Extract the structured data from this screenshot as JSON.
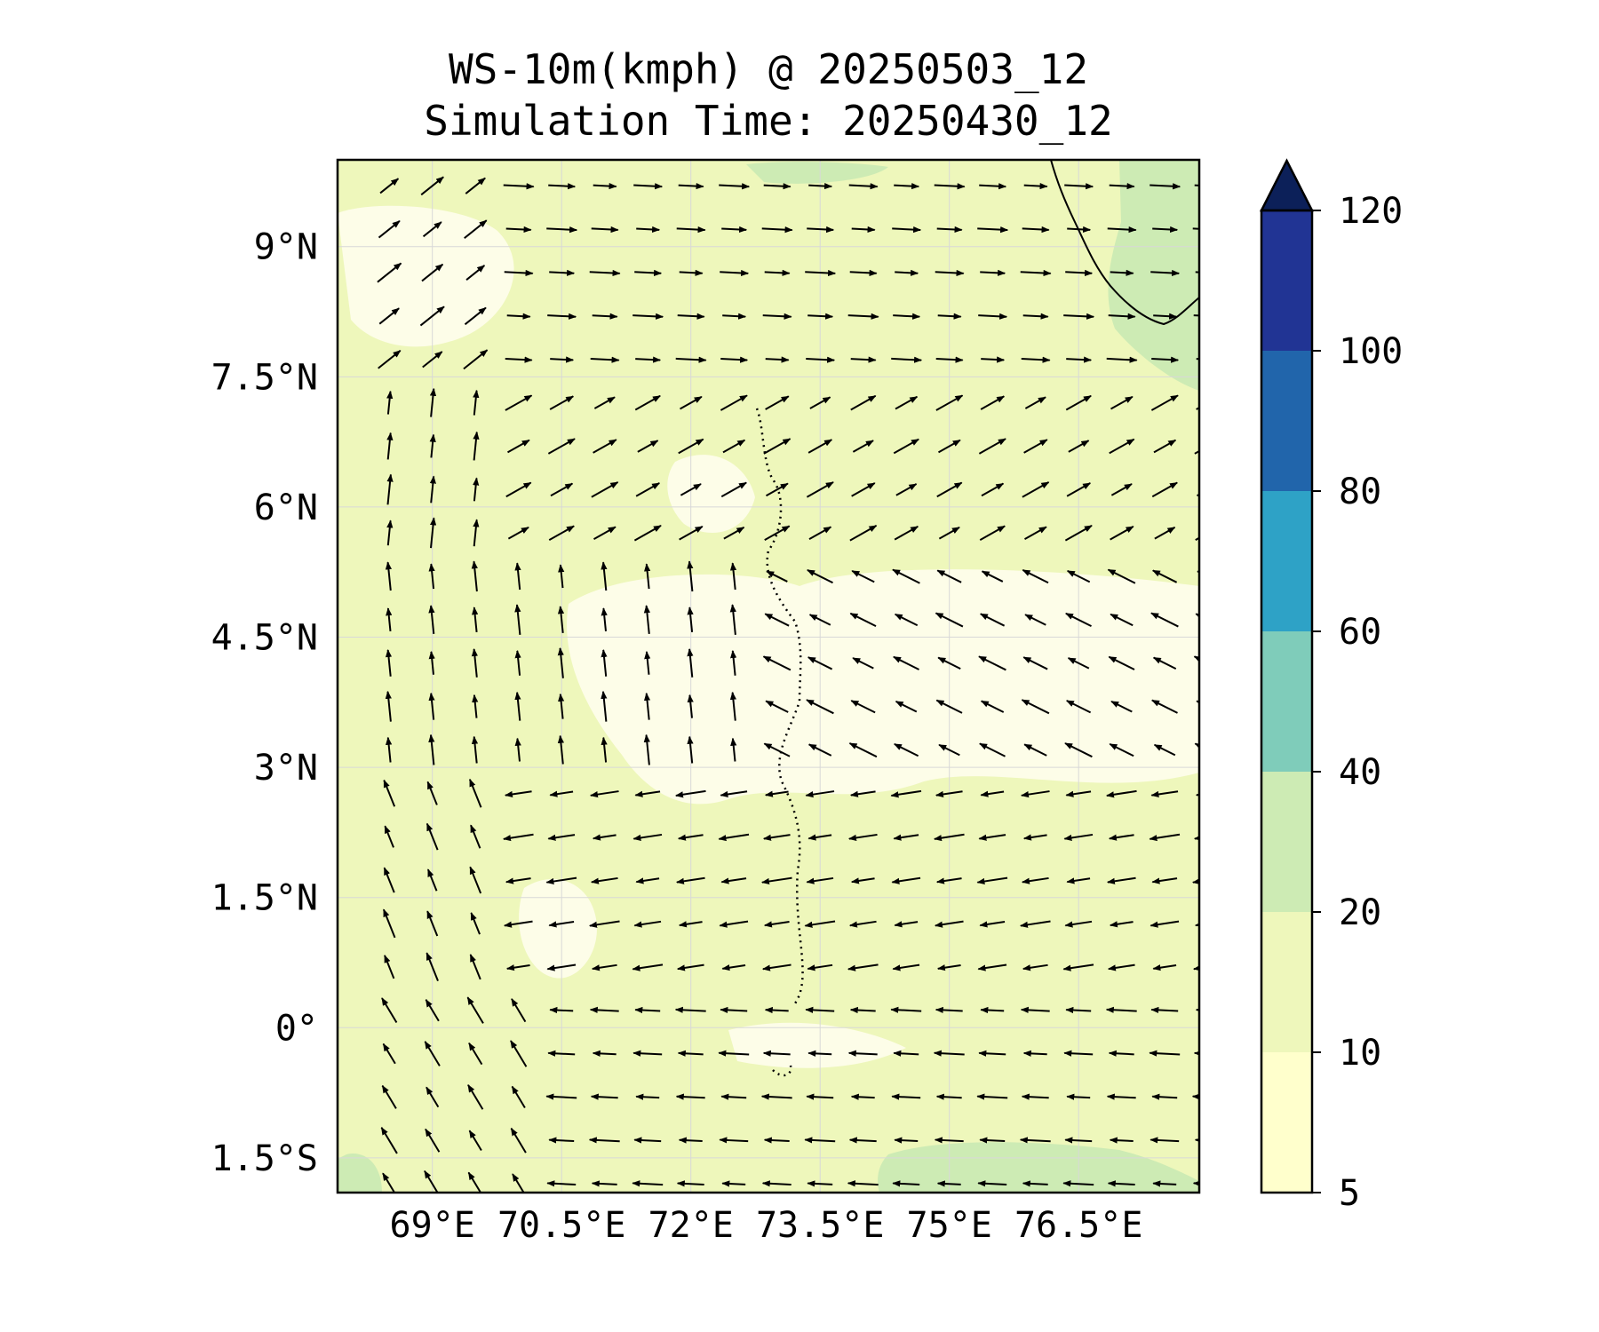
{
  "title": "WS-10m(kmph) @ 20250503_12",
  "subtitle": "Simulation Time: 20250430_12",
  "chart_data": {
    "type": "heatmap",
    "variable": "10 m wind speed with wind vectors",
    "units": "kmph",
    "xlim": [
      67.9,
      77.9
    ],
    "ylim": [
      -1.9,
      10.0
    ],
    "x_ticks": [
      69,
      70.5,
      72,
      73.5,
      75,
      76.5
    ],
    "x_tick_labels": [
      "69°E",
      "70.5°E",
      "72°E",
      "73.5°E",
      "75°E",
      "76.5°E"
    ],
    "y_ticks": [
      9,
      7.5,
      6,
      4.5,
      3,
      1.5,
      0,
      -1.5
    ],
    "y_tick_labels": [
      "9°N",
      "7.5°N",
      "6°N",
      "4.5°N",
      "3°N",
      "1.5°N",
      "0°",
      "1.5°S"
    ],
    "grid": true,
    "colorbar": {
      "levels": [
        5,
        10,
        20,
        40,
        60,
        80,
        100,
        120
      ],
      "tick_labels": [
        "5",
        "10",
        "20",
        "40",
        "60",
        "80",
        "100",
        "120"
      ],
      "colors": [
        "#ffffcc",
        "#eef7bb",
        "#cdebb4",
        "#7fccba",
        "#2ea2c6",
        "#2165ab",
        "#213494",
        "#0c2059"
      ],
      "extend": "max"
    }
  }
}
